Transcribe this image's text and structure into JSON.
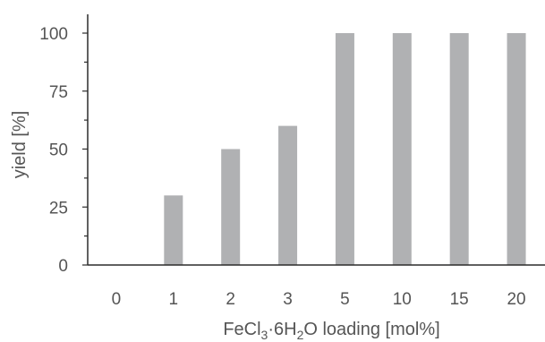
{
  "chart_data": {
    "type": "bar",
    "categories": [
      "0",
      "1",
      "2",
      "3",
      "5",
      "10",
      "15",
      "20"
    ],
    "values": [
      0,
      30,
      50,
      60,
      100,
      100,
      100,
      100
    ],
    "title": "",
    "xlabel": {
      "parts": [
        {
          "text": "FeCl",
          "sub": false
        },
        {
          "text": "3",
          "sub": true
        },
        {
          "text": "·6H",
          "sub": false
        },
        {
          "text": "2",
          "sub": true
        },
        {
          "text": "O  loading [mol%]",
          "sub": false
        }
      ]
    },
    "ylabel": "yield [%]",
    "ylim": [
      0,
      100
    ],
    "yticks": [
      "0",
      "25",
      "50",
      "75",
      "100"
    ],
    "ytick_values": [
      0,
      25,
      50,
      75,
      100
    ],
    "grid": false,
    "colors": {
      "bar": "#b0b1b3",
      "axis": "#2b2b2b",
      "text": "#555555"
    }
  }
}
